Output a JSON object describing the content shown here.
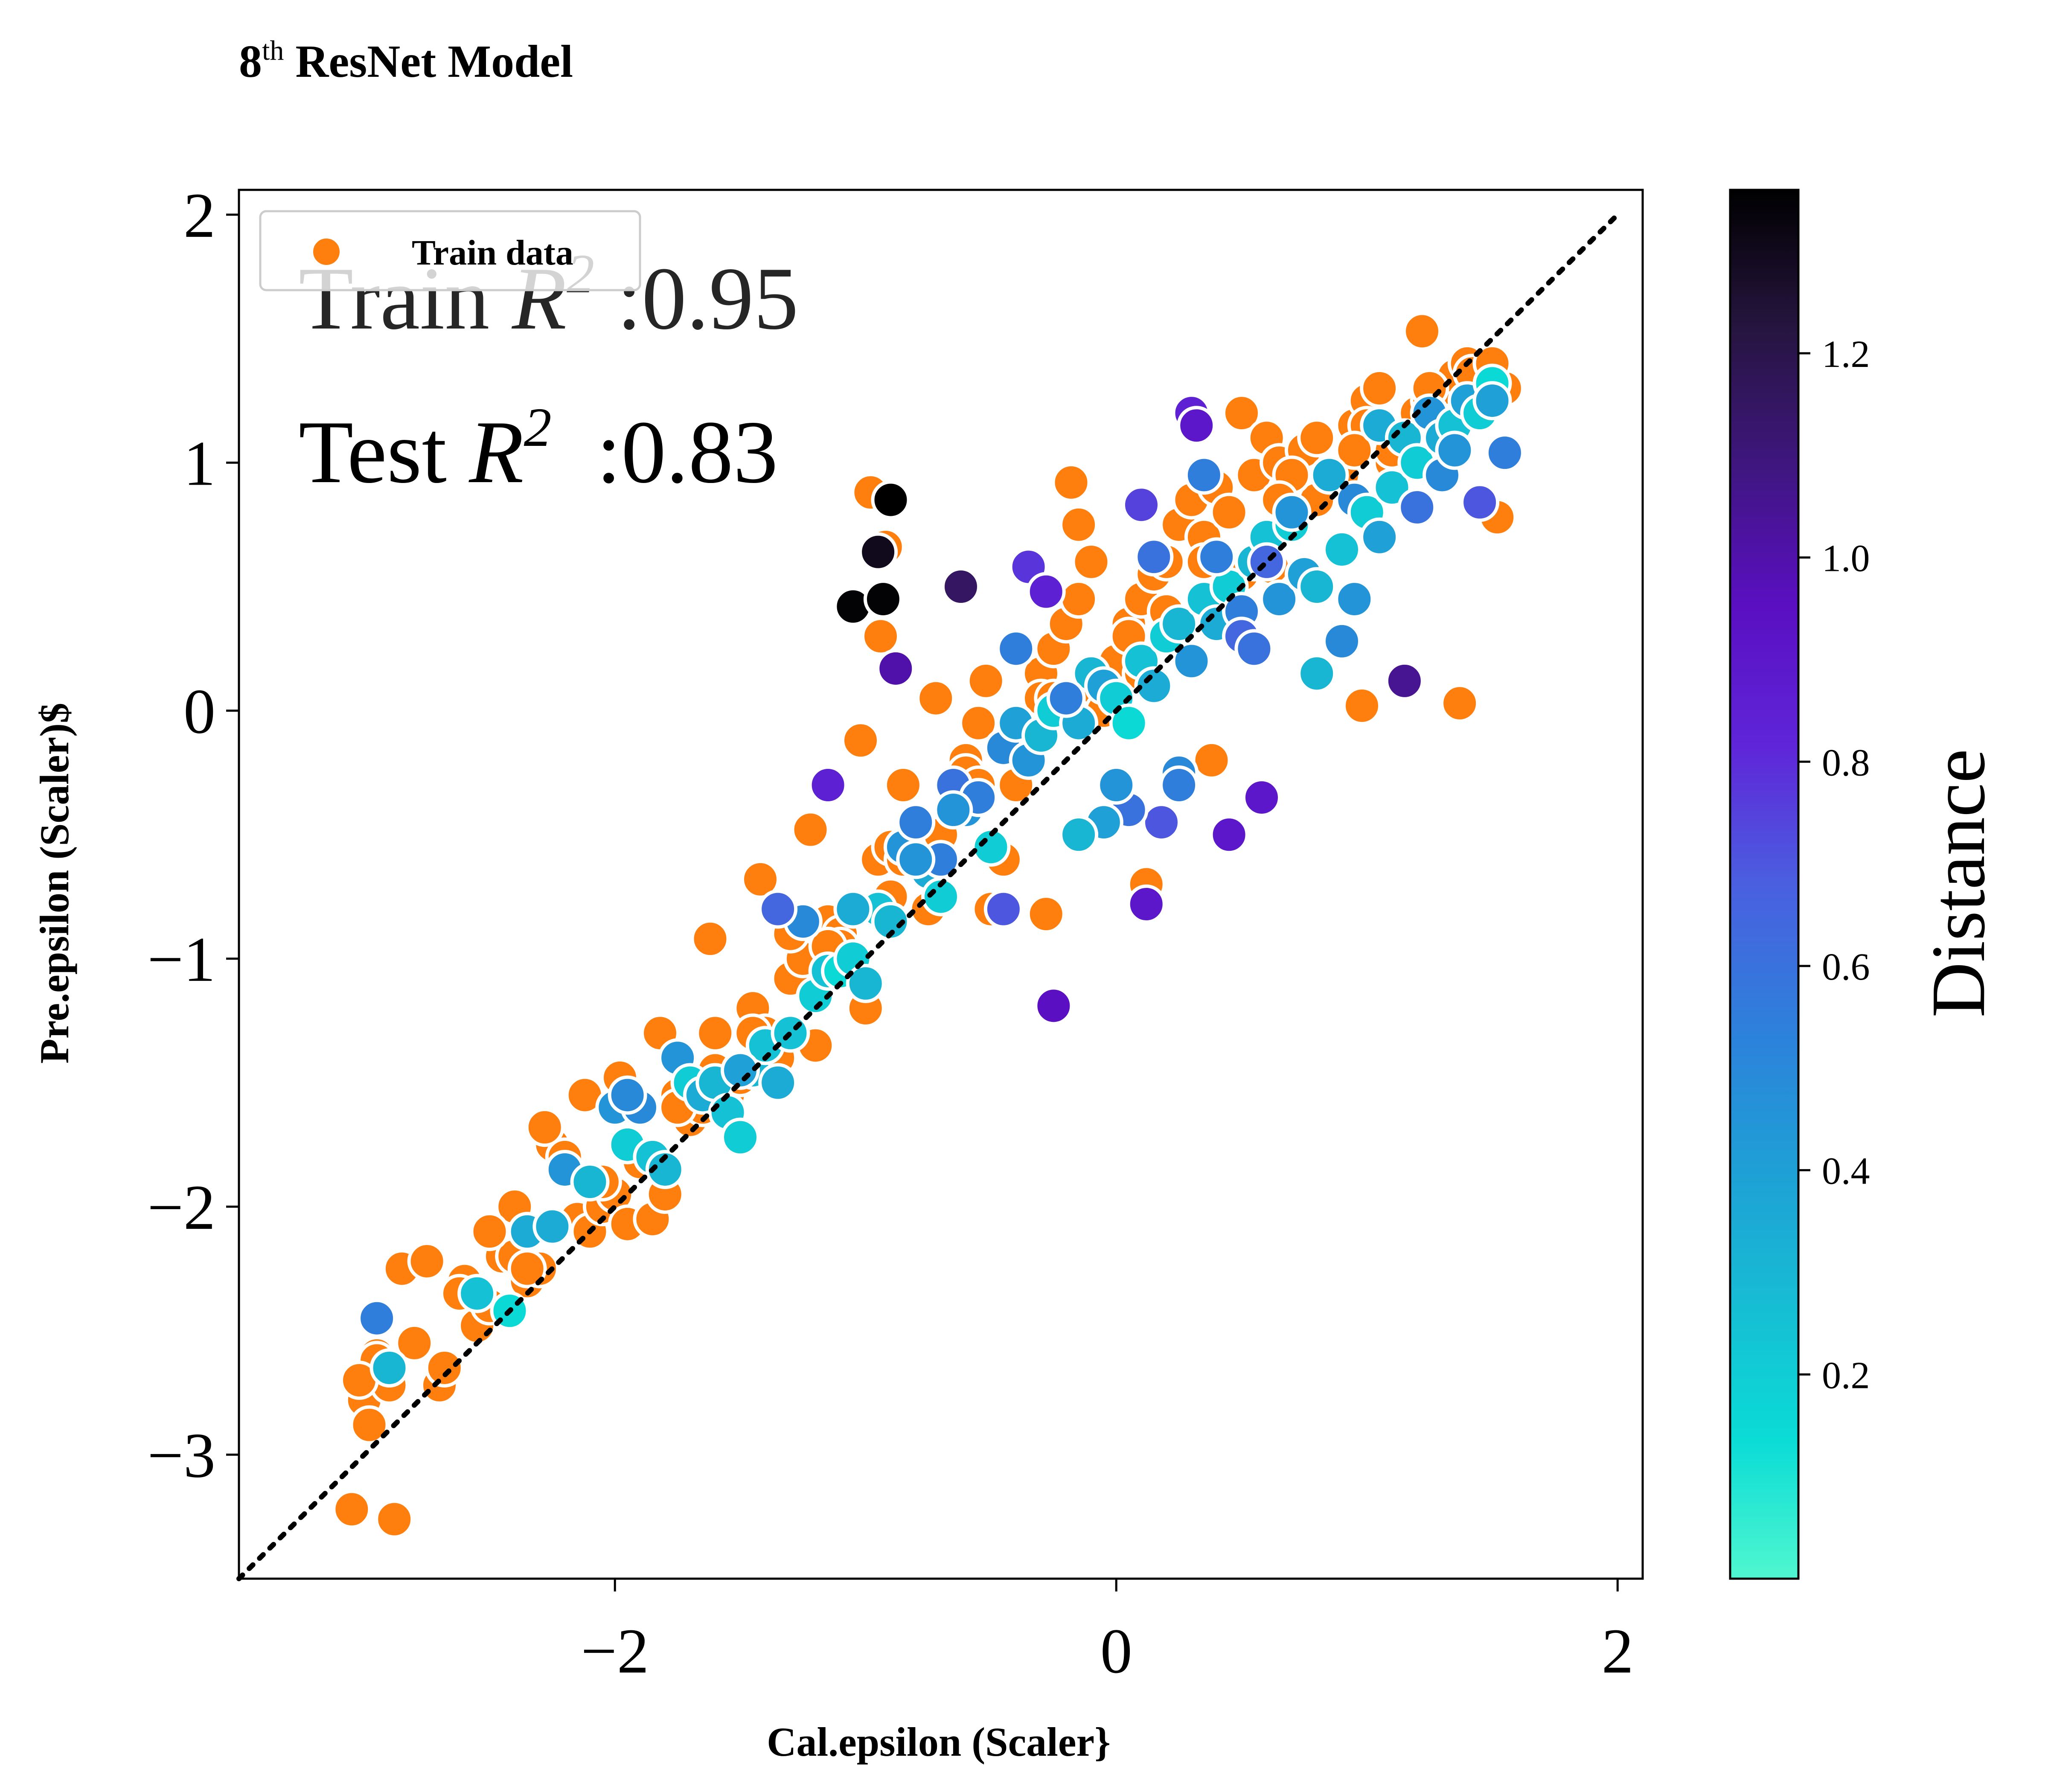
{
  "chart_data": {
    "type": "scatter",
    "title_main": "8",
    "title_sup": "th",
    "title_rest": " ResNet Model",
    "xlabel": "Cal.epsilon (Scaler}",
    "ylabel": "Pre.epsilon (Scaler)$",
    "xlim": [
      -3.5,
      2.1
    ],
    "ylim": [
      -3.5,
      2.1
    ],
    "x_ticks": [
      {
        "value": -2,
        "label": "−2"
      },
      {
        "value": 0,
        "label": "0"
      },
      {
        "value": 2,
        "label": "2"
      }
    ],
    "y_ticks": [
      {
        "value": -3,
        "label": "−3"
      },
      {
        "value": -2,
        "label": "−2"
      },
      {
        "value": -1,
        "label": "−1"
      },
      {
        "value": 0,
        "label": "0"
      },
      {
        "value": 1,
        "label": "1"
      },
      {
        "value": 2,
        "label": "2"
      }
    ],
    "grid": false,
    "legend": {
      "placement": "upper-left",
      "entries": [
        {
          "label": "Train data",
          "color": "#ff7f0e"
        }
      ]
    },
    "annotations": {
      "train_prefix": "Train ",
      "train_r": "R",
      "train_sup": "2",
      "train_value": " :0.95",
      "test_prefix": "Test ",
      "test_r": "R",
      "test_sup": "2",
      "test_value": "  :0.83"
    },
    "diagonal": {
      "style": "dotted",
      "color": "#000000",
      "from": [
        -3.5,
        -3.5
      ],
      "to": [
        2.0,
        2.0
      ]
    },
    "colorbar": {
      "label": "Distance",
      "min": 0.0,
      "max": 1.36,
      "ticks": [
        0.2,
        0.4,
        0.6,
        0.8,
        1.0,
        1.2
      ],
      "tick_labels": [
        "0.2",
        "0.4",
        "0.6",
        "0.8",
        "1.0",
        "1.2"
      ],
      "colormap": [
        "#4ff7cf",
        "#0adcd6",
        "#17bcd4",
        "#1f9ed6",
        "#2e7fdb",
        "#4a5fe0",
        "#5f25d8",
        "#5a0fc2",
        "#3f1680",
        "#261540",
        "#000000"
      ]
    },
    "train_series": {
      "name": "Train data",
      "color": "#ff7f0e",
      "x": [
        -3.05,
        -3.0,
        -2.98,
        -2.95,
        -2.9,
        -2.88,
        -2.85,
        -2.8,
        -2.7,
        -2.68,
        -2.6,
        -2.55,
        -2.5,
        -2.45,
        -2.4,
        -2.35,
        -2.3,
        -2.25,
        -2.2,
        -2.15,
        -2.1,
        -2.05,
        -2.0,
        -1.95,
        -1.9,
        -1.85,
        -1.8,
        -1.75,
        -1.7,
        -1.65,
        -1.6,
        -1.55,
        -1.5,
        -1.45,
        -1.4,
        -1.35,
        -1.3,
        -1.25,
        -1.2,
        -1.15,
        -1.1,
        -1.05,
        -1.0,
        -0.95,
        -0.9,
        -0.85,
        -0.8,
        -0.75,
        -0.7,
        -0.65,
        -0.6,
        -0.55,
        -0.5,
        -0.45,
        -0.4,
        -0.35,
        -0.3,
        -0.25,
        -0.2,
        -0.15,
        -0.1,
        -0.05,
        0.0,
        0.05,
        0.1,
        0.15,
        0.2,
        0.25,
        0.3,
        0.35,
        0.4,
        0.45,
        0.5,
        0.55,
        0.6,
        0.65,
        0.7,
        0.75,
        0.8,
        0.85,
        0.9,
        0.95,
        1.0,
        1.05,
        1.1,
        1.15,
        1.2,
        1.25,
        1.3,
        1.35,
        1.4,
        1.45,
        1.5,
        1.55,
        -2.9,
        -2.95,
        -3.02,
        -2.75,
        -2.62,
        -2.4,
        -2.28,
        -2.12,
        -1.98,
        -1.82,
        -1.62,
        -1.42,
        -1.22,
        -1.02,
        -0.98,
        -0.94,
        -0.92,
        -0.72,
        -0.52,
        -0.28,
        -0.18,
        -0.15,
        -0.1,
        0.12,
        0.38,
        0.62,
        0.98,
        1.22,
        1.37,
        1.42,
        1.52,
        -1.9,
        -2.2,
        -1.6,
        -1.3,
        -0.9,
        -0.6,
        -0.3,
        0.1,
        0.5,
        0.8,
        1.1,
        1.3,
        -2.5,
        -1.7,
        -1.1,
        -0.4,
        0.2,
        0.7,
        1.0,
        1.45,
        -2.35,
        -2.05,
        -1.75,
        -1.45,
        -1.15,
        -0.85,
        -0.55,
        -0.25,
        0.05,
        0.35,
        0.65,
        0.95,
        1.25,
        1.5
      ],
      "y": [
        -3.22,
        -2.78,
        -2.88,
        -2.6,
        -2.72,
        -3.26,
        -2.25,
        -2.55,
        -2.72,
        -2.65,
        -2.3,
        -2.48,
        -2.4,
        -2.2,
        -2.2,
        -2.3,
        -2.25,
        -1.75,
        -1.8,
        -2.05,
        -2.1,
        -2.0,
        -1.95,
        -2.07,
        -1.82,
        -2.05,
        -1.95,
        -1.55,
        -1.65,
        -1.6,
        -1.45,
        -1.55,
        -1.48,
        -1.2,
        -1.3,
        -1.4,
        -1.08,
        -1.0,
        -1.35,
        -0.85,
        -0.9,
        -1.05,
        -1.2,
        -0.6,
        -0.75,
        -0.3,
        -0.5,
        -0.8,
        -0.5,
        -0.3,
        -0.2,
        -0.05,
        -0.8,
        -0.6,
        -0.3,
        -0.1,
        0.15,
        0.25,
        0.35,
        0.45,
        0.1,
        0.0,
        0.2,
        0.35,
        0.45,
        0.55,
        0.6,
        0.75,
        0.85,
        0.7,
        0.9,
        0.8,
        1.2,
        0.95,
        1.1,
        1.0,
        0.85,
        1.05,
        1.1,
        0.9,
        0.95,
        1.15,
        1.25,
        1.3,
        1.0,
        1.1,
        1.2,
        1.25,
        1.3,
        1.35,
        1.4,
        1.3,
        1.35,
        1.3,
        -2.65,
        -2.62,
        -2.7,
        -2.22,
        -2.35,
        -2.0,
        -1.68,
        -1.55,
        -1.48,
        -1.3,
        -0.92,
        -0.68,
        -0.48,
        -0.12,
        0.88,
        0.3,
        0.66,
        0.05,
        0.12,
        -0.82,
        0.92,
        0.75,
        0.6,
        -0.7,
        -0.2,
        0.58,
        0.02,
        1.53,
        0.03,
        1.36,
        0.78,
        -1.6,
        -1.85,
        -1.3,
        -0.9,
        -0.55,
        -0.25,
        0.05,
        0.15,
        0.55,
        0.85,
        1.05,
        1.0,
        -2.1,
        -1.55,
        -0.95,
        -0.15,
        0.4,
        0.95,
        1.15,
        1.2,
        -2.25,
        -1.9,
        -1.6,
        -1.3,
        -0.95,
        -0.6,
        -0.3,
        0.05,
        0.3,
        0.6,
        0.85,
        1.05,
        1.3,
        1.4
      ]
    },
    "test_series": {
      "name": "",
      "x": [
        -2.95,
        -2.9,
        -2.55,
        -2.42,
        -2.35,
        -2.25,
        -2.2,
        -2.1,
        -2.0,
        -1.95,
        -1.9,
        -1.85,
        -1.8,
        -1.75,
        -1.7,
        -1.65,
        -1.6,
        -1.55,
        -1.5,
        -1.45,
        -1.4,
        -1.35,
        -1.3,
        -1.25,
        -1.2,
        -1.15,
        -1.1,
        -1.05,
        -1.0,
        -0.95,
        -0.9,
        -0.85,
        -0.8,
        -0.75,
        -0.7,
        -0.65,
        -0.6,
        -0.55,
        -0.5,
        -0.45,
        -0.4,
        -0.35,
        -0.3,
        -0.25,
        -0.2,
        -0.15,
        -0.1,
        -0.05,
        0.0,
        0.05,
        0.1,
        0.15,
        0.2,
        0.25,
        0.3,
        0.35,
        0.4,
        0.45,
        0.5,
        0.55,
        0.6,
        0.65,
        0.7,
        0.75,
        0.8,
        0.85,
        0.9,
        0.95,
        1.0,
        1.05,
        1.1,
        1.15,
        1.2,
        1.25,
        1.3,
        1.35,
        1.4,
        1.45,
        1.5,
        1.55,
        -1.05,
        -0.95,
        -0.93,
        -0.9,
        -0.62,
        -0.88,
        -0.35,
        -0.28,
        -0.25,
        0.3,
        0.32,
        0.12,
        0.58,
        0.45,
        1.15,
        -1.15,
        -0.45,
        0.1,
        0.18,
        0.05,
        -0.2,
        0.5,
        0.55,
        0.25,
        -0.7,
        -0.05,
        0.4,
        0.7,
        0.9,
        1.05,
        -1.35,
        -0.8,
        -0.4,
        0.0,
        0.15,
        0.35,
        0.6,
        0.95,
        1.2,
        1.45,
        -1.95,
        -1.5,
        -1.05,
        -0.65,
        -0.15,
        0.25,
        0.8,
        1.3,
        1.5,
        1.35
      ],
      "y": [
        -2.45,
        -2.65,
        -2.35,
        -2.42,
        -2.1,
        -2.08,
        -1.85,
        -1.9,
        -1.6,
        -1.75,
        -1.6,
        -1.8,
        -1.85,
        -1.4,
        -1.5,
        -1.55,
        -1.5,
        -1.62,
        -1.72,
        -1.45,
        -1.35,
        -1.5,
        -1.3,
        -0.85,
        -1.15,
        -1.05,
        -1.05,
        -1.0,
        -1.1,
        -0.8,
        -0.85,
        -0.55,
        -0.45,
        -0.65,
        -0.75,
        -0.3,
        -0.4,
        -0.35,
        -0.55,
        -0.15,
        -0.05,
        -0.2,
        -0.1,
        0.0,
        0.05,
        -0.05,
        0.15,
        0.1,
        0.05,
        -0.05,
        0.2,
        0.1,
        0.3,
        0.35,
        0.2,
        0.45,
        0.35,
        0.5,
        0.4,
        0.6,
        0.7,
        0.45,
        0.75,
        0.55,
        0.5,
        0.95,
        0.65,
        0.85,
        0.8,
        1.15,
        0.9,
        1.1,
        1.0,
        1.2,
        1.1,
        1.15,
        1.25,
        1.2,
        1.32,
        1.04,
        0.42,
        0.64,
        0.45,
        0.85,
        0.5,
        0.17,
        0.58,
        0.48,
        -1.19,
        1.2,
        1.15,
        -0.78,
        -0.35,
        -0.5,
        0.12,
        -0.3,
        -0.8,
        0.83,
        -0.45,
        -0.4,
        0.05,
        0.3,
        0.25,
        -0.25,
        -0.6,
        -0.45,
        0.62,
        0.8,
        0.28,
        0.7,
        -0.8,
        -0.6,
        0.25,
        -0.3,
        0.62,
        0.95,
        0.6,
        0.45,
        0.82,
        0.84,
        -1.55,
        -1.45,
        -0.8,
        -0.4,
        -0.5,
        -0.3,
        0.15,
        0.95,
        1.25,
        1.05
      ],
      "distance": [
        0.55,
        0.3,
        0.25,
        0.15,
        0.35,
        0.35,
        0.45,
        0.3,
        0.45,
        0.2,
        0.5,
        0.25,
        0.3,
        0.45,
        0.2,
        0.35,
        0.3,
        0.25,
        0.2,
        0.3,
        0.25,
        0.35,
        0.25,
        0.5,
        0.2,
        0.25,
        0.15,
        0.2,
        0.3,
        0.25,
        0.3,
        0.45,
        0.55,
        0.35,
        0.2,
        0.6,
        0.45,
        0.55,
        0.2,
        0.5,
        0.4,
        0.45,
        0.3,
        0.2,
        0.15,
        0.35,
        0.3,
        0.4,
        0.2,
        0.15,
        0.25,
        0.35,
        0.2,
        0.3,
        0.45,
        0.25,
        0.35,
        0.2,
        0.55,
        0.3,
        0.25,
        0.45,
        0.2,
        0.4,
        0.3,
        0.35,
        0.25,
        0.5,
        0.2,
        0.35,
        0.25,
        0.3,
        0.2,
        0.45,
        0.35,
        0.25,
        0.4,
        0.2,
        0.15,
        0.55,
        1.35,
        1.3,
        1.35,
        1.38,
        1.15,
        1.0,
        0.78,
        0.85,
        0.95,
        0.85,
        0.9,
        0.9,
        0.9,
        0.9,
        1.05,
        0.85,
        0.7,
        0.75,
        0.7,
        0.6,
        0.55,
        0.65,
        0.6,
        0.5,
        0.55,
        0.4,
        0.55,
        0.45,
        0.5,
        0.4,
        0.65,
        0.45,
        0.55,
        0.45,
        0.6,
        0.55,
        0.65,
        0.45,
        0.6,
        0.7,
        0.5,
        0.4,
        0.35,
        0.45,
        0.3,
        0.55,
        0.3,
        0.5,
        0.4,
        0.45
      ]
    }
  }
}
